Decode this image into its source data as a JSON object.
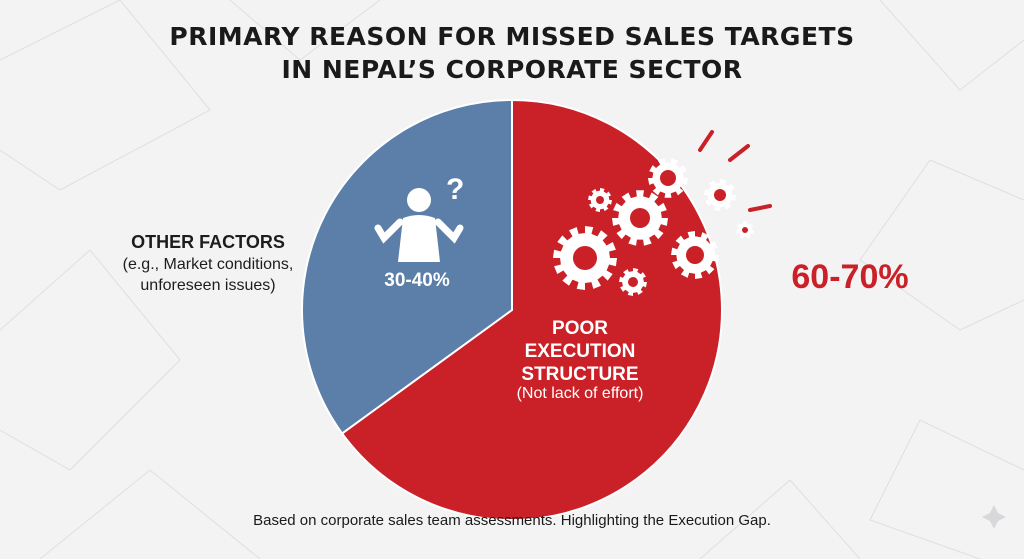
{
  "title": {
    "line1": "PRIMARY REASON FOR MISSED SALES TARGETS",
    "line2": "IN NEPAL’S CORPORATE SECTOR"
  },
  "chart_data": {
    "type": "pie",
    "categories": [
      "OTHER FACTORS",
      "POOR EXECUTION STRUCTURE"
    ],
    "values": [
      35,
      65
    ],
    "value_labels": [
      "30-40%",
      "60-70%"
    ],
    "colors": [
      "#5b7fa8",
      "#c92127"
    ],
    "start_angle_deg": 0,
    "slices": [
      {
        "label": "OTHER FACTORS",
        "sublabel_line1": "(e.g., Market conditions,",
        "sublabel_line2": "unforeseen issues)",
        "value_label": "30-40%",
        "icon": "confused-person-icon"
      },
      {
        "label_line1": "POOR",
        "label_line2": "EXECUTION",
        "label_line3": "STRUCTURE",
        "sublabel": "(Not lack of effort)",
        "value_label": "60-70%",
        "icon": "gears-icon"
      }
    ]
  },
  "footnote": "Based on corporate sales team assessments. Highlighting the Execution Gap.",
  "colors": {
    "background": "#f3f3f4",
    "accent_red": "#c92127",
    "blue": "#5b7fa8"
  },
  "icons": [
    "question-mark-icon",
    "confused-person-icon",
    "gears-icon",
    "sparkle-icon"
  ]
}
